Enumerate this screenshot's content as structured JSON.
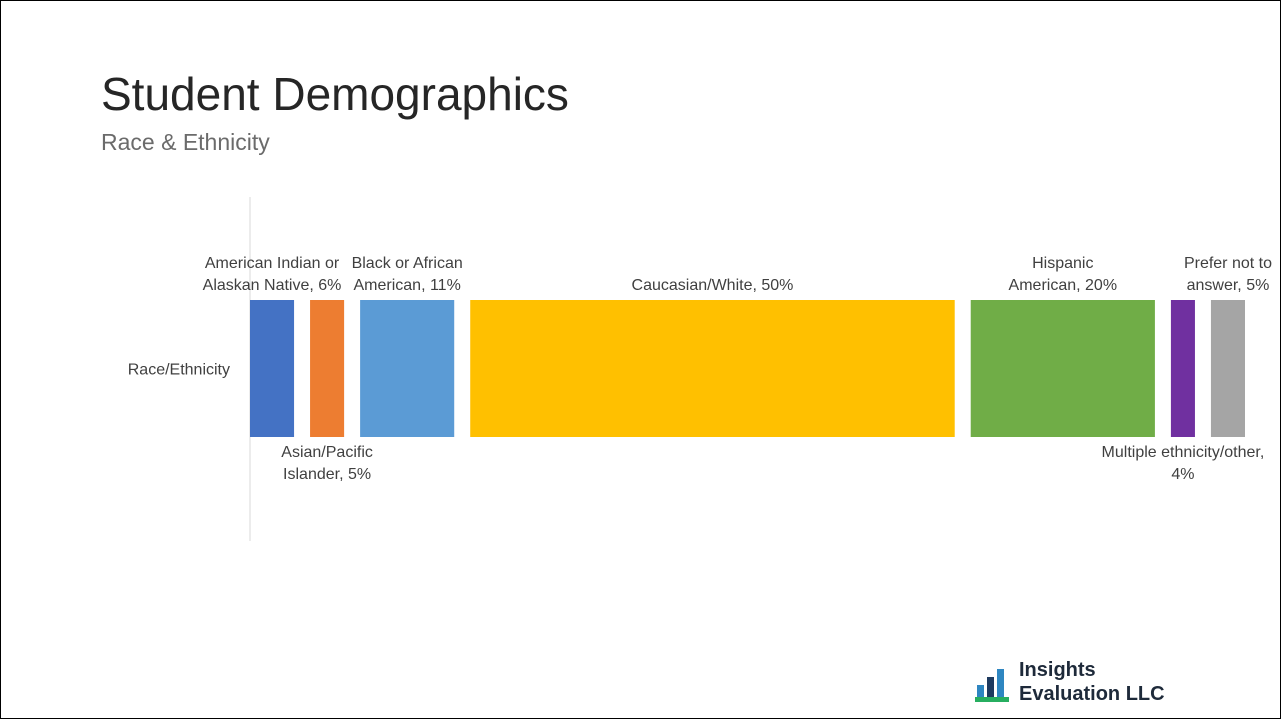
{
  "slide": {
    "title": "Student Demographics",
    "subtitle": "Race & Ethnicity"
  },
  "chart_data": {
    "type": "bar",
    "orientation": "horizontal",
    "stacked": "100%",
    "categories": [
      "Race/Ethnicity"
    ],
    "series": [
      {
        "name": "American Indian or Alaskan Native",
        "values": [
          6
        ],
        "color": "#4472c4",
        "label_lines": [
          "American Indian or",
          "Alaskan Native, 6%"
        ],
        "label_side": "above"
      },
      {
        "name": "Asian/Pacific Islander",
        "values": [
          5
        ],
        "color": "#ed7d31",
        "label_lines": [
          "Asian/Pacific",
          "Islander, 5%"
        ],
        "label_side": "below"
      },
      {
        "name": "Black or African American",
        "values": [
          11
        ],
        "color": "#5b9bd5",
        "label_lines": [
          "Black or African",
          "American, 11%"
        ],
        "label_side": "above"
      },
      {
        "name": "Caucasian/White",
        "values": [
          50
        ],
        "color": "#ffc000",
        "label_lines": [
          "Caucasian/White, 50%"
        ],
        "label_side": "above"
      },
      {
        "name": "Hispanic American",
        "values": [
          20
        ],
        "color": "#70ad47",
        "label_lines": [
          "Hispanic",
          "American, 20%"
        ],
        "label_side": "above"
      },
      {
        "name": "Multiple ethnicity/other",
        "values": [
          4
        ],
        "color": "#7030a0",
        "label_lines": [
          "Multiple ethnicity/other,",
          "4%"
        ],
        "label_side": "below"
      },
      {
        "name": "Prefer not to answer",
        "values": [
          5
        ],
        "color": "#a5a5a5",
        "label_lines": [
          "Prefer not to",
          "answer, 5%"
        ],
        "label_side": "above"
      }
    ],
    "xlim": [
      0,
      101
    ],
    "grid": false,
    "legend": "none"
  },
  "logo": {
    "line1": "Insights",
    "line2": "Evaluation LLC",
    "colors": [
      "#1e3a5f",
      "#2e86c1",
      "#27ae60"
    ]
  }
}
